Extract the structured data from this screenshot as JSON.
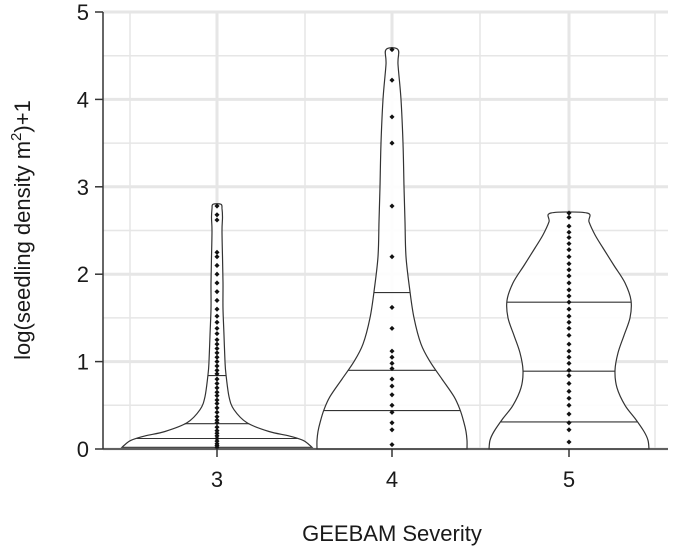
{
  "chart_data": {
    "type": "violin",
    "xlabel": "GEEBAM Severity",
    "ylabel_main": "log(seedling density m",
    "ylabel_sup": "2",
    "ylabel_tail": ")+1",
    "ylim": [
      0,
      5
    ],
    "y_ticks": [
      0,
      1,
      2,
      3,
      4,
      5
    ],
    "grid": true,
    "colors": {
      "grid": "#e6e6e6",
      "outline": "#333333",
      "points": "#111111"
    },
    "groups": [
      {
        "category": "3",
        "profile": [
          [
            0.02,
            95
          ],
          [
            0.05,
            92
          ],
          [
            0.1,
            86
          ],
          [
            0.15,
            72
          ],
          [
            0.2,
            52
          ],
          [
            0.3,
            30
          ],
          [
            0.45,
            17
          ],
          [
            0.6,
            12
          ],
          [
            0.85,
            9
          ],
          [
            1.0,
            8
          ],
          [
            1.3,
            7
          ],
          [
            1.6,
            6
          ],
          [
            1.9,
            6
          ],
          [
            2.2,
            5.5
          ],
          [
            2.5,
            5
          ],
          [
            2.65,
            5.5
          ],
          [
            2.75,
            5
          ],
          [
            2.8,
            4
          ]
        ],
        "min": 0.02,
        "max": 2.82,
        "quartiles": [
          0.12,
          0.29,
          0.84
        ],
        "points": [
          0.02,
          0.04,
          0.06,
          0.09,
          0.12,
          0.15,
          0.18,
          0.21,
          0.25,
          0.3,
          0.33,
          0.37,
          0.42,
          0.47,
          0.52,
          0.56,
          0.61,
          0.65,
          0.7,
          0.75,
          0.8,
          0.86,
          0.9,
          0.95,
          1.0,
          1.05,
          1.1,
          1.15,
          1.2,
          1.25,
          1.32,
          1.38,
          1.45,
          1.52,
          1.6,
          1.7,
          1.8,
          1.9,
          2.0,
          2.1,
          2.2,
          2.25,
          2.62,
          2.68,
          2.78
        ]
      },
      {
        "category": "4",
        "profile": [
          [
            0.0,
            75
          ],
          [
            0.1,
            75
          ],
          [
            0.2,
            74
          ],
          [
            0.3,
            72
          ],
          [
            0.45,
            68
          ],
          [
            0.6,
            62
          ],
          [
            0.8,
            50
          ],
          [
            1.0,
            38
          ],
          [
            1.2,
            29
          ],
          [
            1.5,
            22
          ],
          [
            1.8,
            18
          ],
          [
            2.2,
            14
          ],
          [
            2.6,
            13
          ],
          [
            3.0,
            12
          ],
          [
            3.5,
            11
          ],
          [
            4.0,
            9
          ],
          [
            4.4,
            6
          ],
          [
            4.57,
            6
          ]
        ],
        "min": 0.0,
        "max": 4.57,
        "quartiles": [
          0.44,
          0.9,
          1.79
        ],
        "points": [
          0.05,
          0.22,
          0.3,
          0.42,
          0.5,
          0.62,
          0.72,
          0.8,
          0.92,
          0.98,
          1.05,
          1.12,
          1.38,
          1.62,
          2.2,
          2.78,
          3.5,
          3.8,
          4.22,
          4.57
        ]
      },
      {
        "category": "5",
        "profile": [
          [
            0.0,
            80
          ],
          [
            0.1,
            79
          ],
          [
            0.2,
            75
          ],
          [
            0.35,
            66
          ],
          [
            0.5,
            56
          ],
          [
            0.7,
            48
          ],
          [
            0.9,
            46
          ],
          [
            1.1,
            49
          ],
          [
            1.3,
            55
          ],
          [
            1.5,
            61
          ],
          [
            1.7,
            62
          ],
          [
            1.9,
            56
          ],
          [
            2.1,
            45
          ],
          [
            2.3,
            34
          ],
          [
            2.45,
            26
          ],
          [
            2.6,
            20
          ],
          [
            2.7,
            18
          ]
        ],
        "min": 0.0,
        "max": 2.7,
        "quartiles": [
          0.31,
          0.89,
          1.68
        ],
        "points": [
          0.08,
          0.22,
          0.3,
          0.4,
          0.5,
          0.58,
          0.66,
          0.75,
          0.84,
          0.9,
          0.98,
          1.05,
          1.12,
          1.2,
          1.3,
          1.38,
          1.45,
          1.52,
          1.6,
          1.68,
          1.75,
          1.82,
          1.9,
          1.98,
          2.05,
          2.12,
          2.2,
          2.28,
          2.35,
          2.42,
          2.48,
          2.55,
          2.65,
          2.7
        ]
      }
    ]
  }
}
